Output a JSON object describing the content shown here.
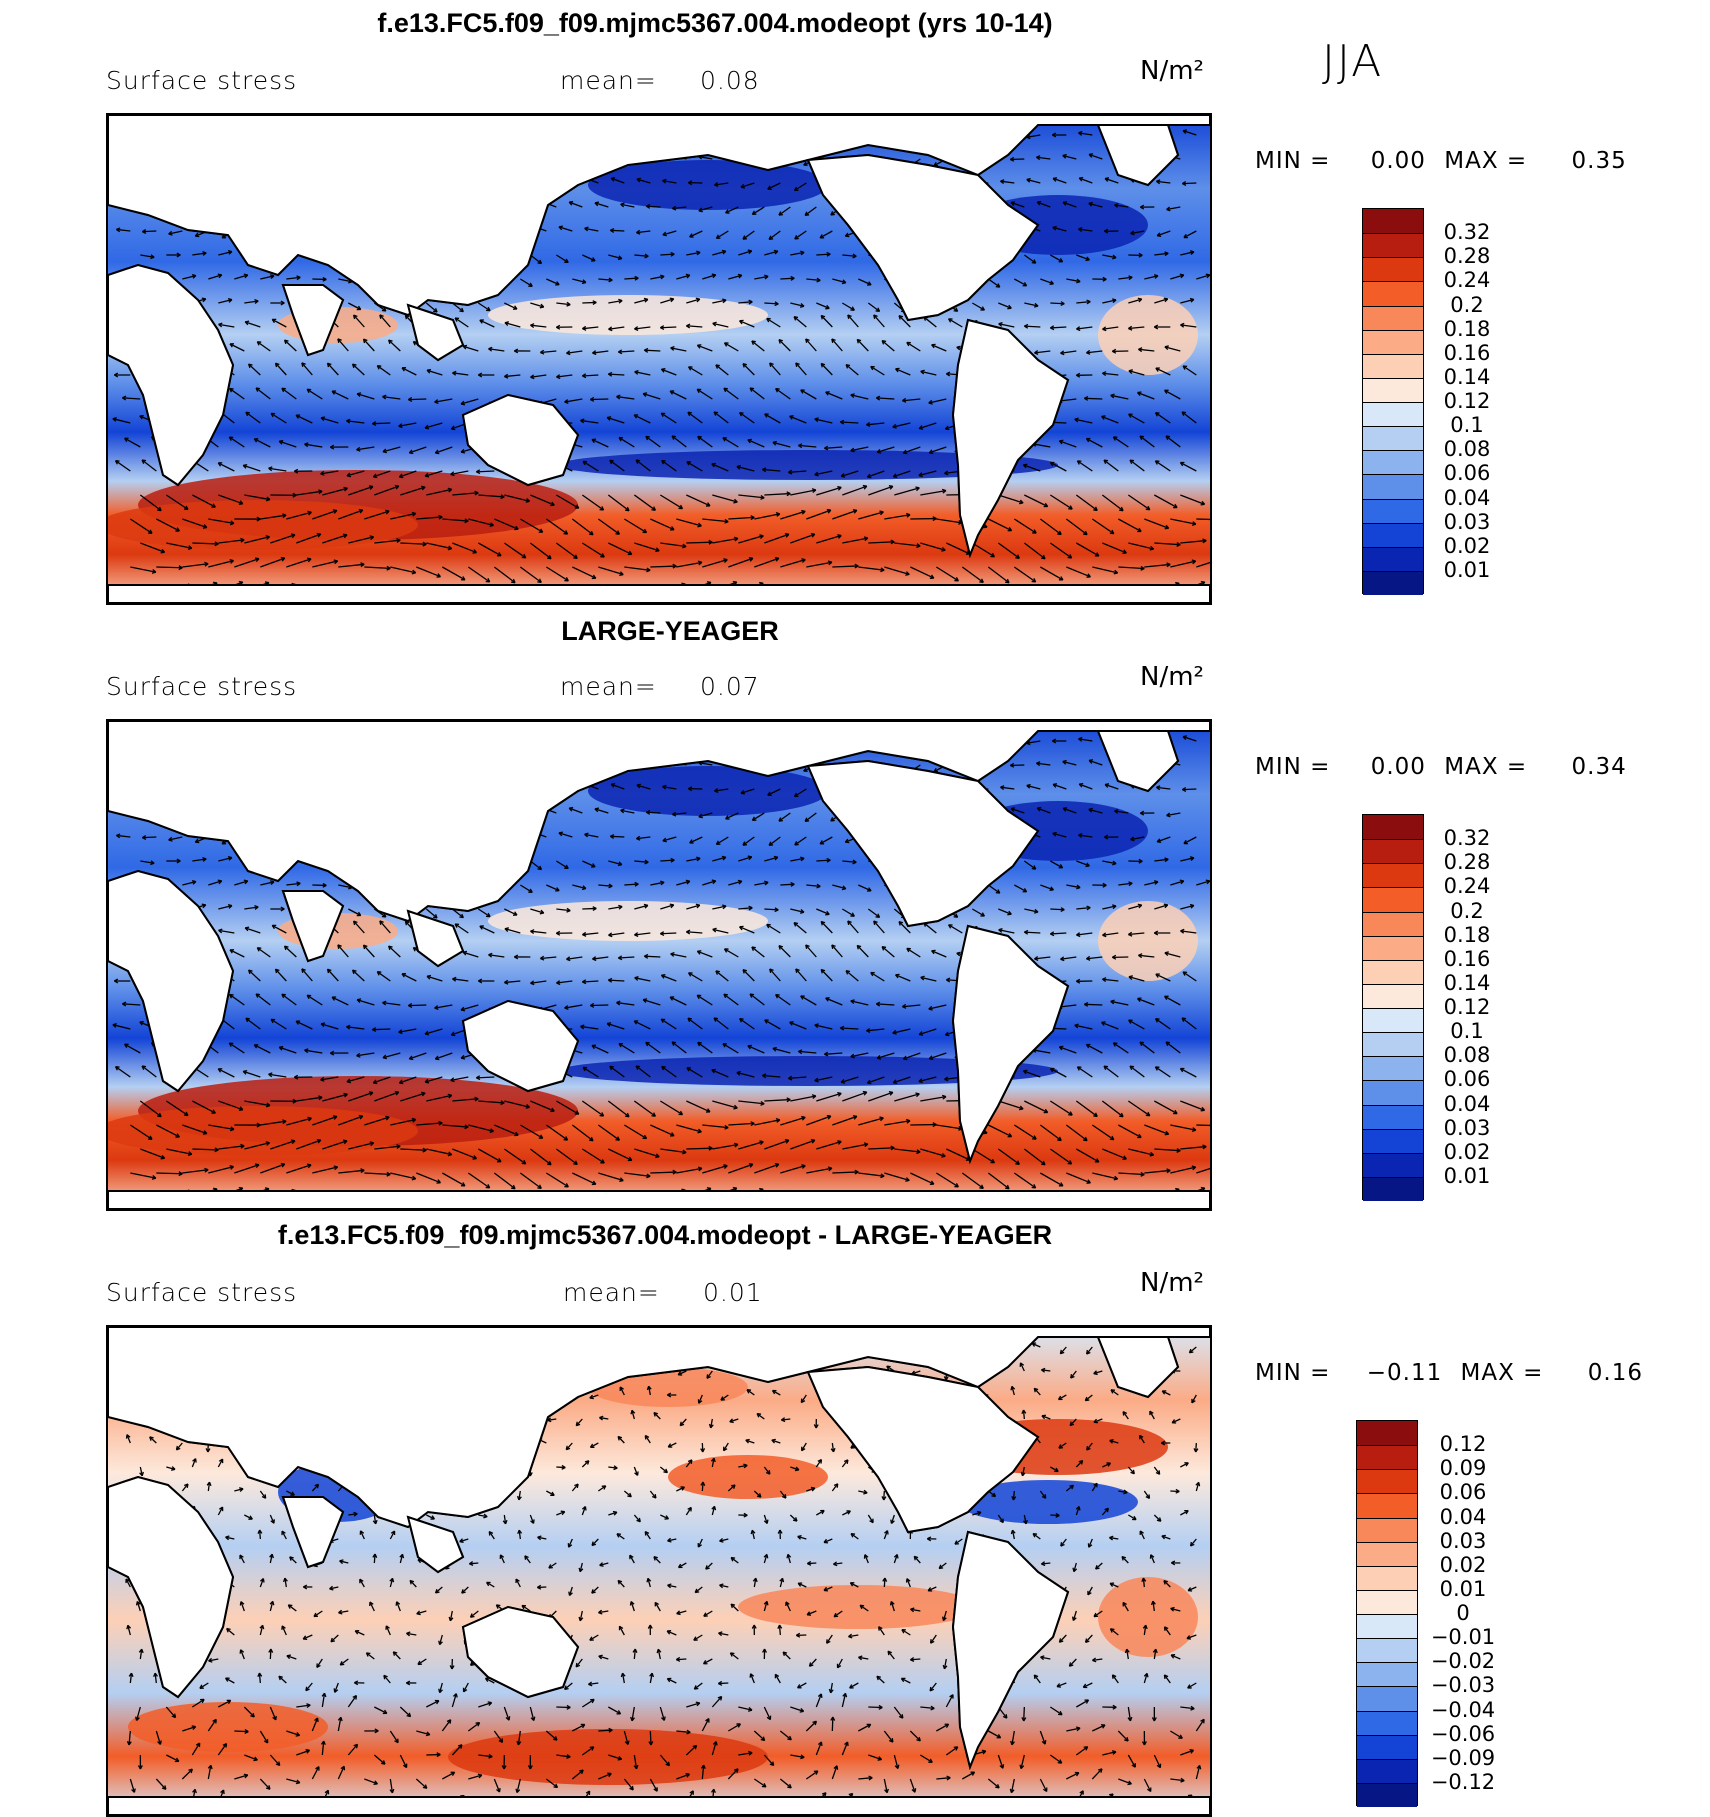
{
  "season": "JJA",
  "panels": [
    {
      "title": "f.e13.FC5.f09_f09.mjmc5367.004.modeopt (yrs 10-14)",
      "variable": "Surface stress",
      "mean_label": "mean=",
      "mean_value": "0.08",
      "units": "N/m²",
      "min_label": "MIN =",
      "min_value": "0.00",
      "max_label": "MAX =",
      "max_value": "0.35",
      "colorbar_labels": [
        "0.32",
        "0.28",
        "0.24",
        "0.2",
        "0.18",
        "0.16",
        "0.14",
        "0.12",
        "0.1",
        "0.08",
        "0.06",
        "0.04",
        "0.03",
        "0.02",
        "0.01"
      ],
      "colorbar_colors": [
        "#8b0d0d",
        "#b81e10",
        "#dc3910",
        "#f25d28",
        "#f8875a",
        "#fbab86",
        "#fdd0b6",
        "#fde9dc",
        "#d8e8f8",
        "#b4cff2",
        "#8db3ee",
        "#5e8fe9",
        "#3069e6",
        "#1344d6",
        "#0a25b2",
        "#061685"
      ]
    },
    {
      "title": "LARGE-YEAGER",
      "variable": "Surface stress",
      "mean_label": "mean=",
      "mean_value": "0.07",
      "units": "N/m²",
      "min_label": "MIN =",
      "min_value": "0.00",
      "max_label": "MAX =",
      "max_value": "0.34",
      "colorbar_labels": [
        "0.32",
        "0.28",
        "0.24",
        "0.2",
        "0.18",
        "0.16",
        "0.14",
        "0.12",
        "0.1",
        "0.08",
        "0.06",
        "0.04",
        "0.03",
        "0.02",
        "0.01"
      ],
      "colorbar_colors": [
        "#8b0d0d",
        "#b81e10",
        "#dc3910",
        "#f25d28",
        "#f8875a",
        "#fbab86",
        "#fdd0b6",
        "#fde9dc",
        "#d8e8f8",
        "#b4cff2",
        "#8db3ee",
        "#5e8fe9",
        "#3069e6",
        "#1344d6",
        "#0a25b2",
        "#061685"
      ]
    },
    {
      "title": "f.e13.FC5.f09_f09.mjmc5367.004.modeopt - LARGE-YEAGER",
      "variable": "Surface stress",
      "mean_label": "mean=",
      "mean_value": "0.01",
      "units": "N/m²",
      "min_label": "MIN =",
      "min_value": "−0.11",
      "max_label": "MAX =",
      "max_value": "0.16",
      "colorbar_labels": [
        "0.12",
        "0.09",
        "0.06",
        "0.04",
        "0.03",
        "0.02",
        "0.01",
        "0",
        "−0.01",
        "−0.02",
        "−0.03",
        "−0.04",
        "−0.06",
        "−0.09",
        "−0.12"
      ],
      "colorbar_colors": [
        "#8b0d0d",
        "#b81e10",
        "#dc3910",
        "#f25d28",
        "#f8875a",
        "#fbab86",
        "#fdd0b6",
        "#fde9dc",
        "#d8e8f8",
        "#b4cff2",
        "#8db3ee",
        "#5e8fe9",
        "#3069e6",
        "#1344d6",
        "#0a25b2",
        "#061685"
      ]
    }
  ]
}
